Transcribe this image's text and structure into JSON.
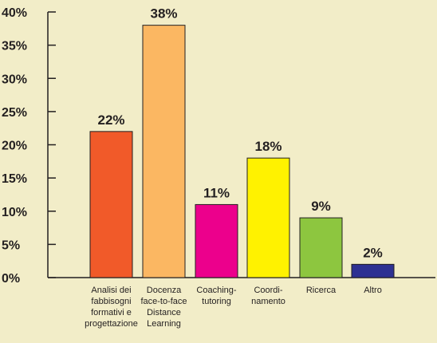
{
  "chart_data": {
    "type": "bar",
    "title": "",
    "xlabel": "",
    "ylabel": "",
    "ylim": [
      0,
      40
    ],
    "yticks": [
      "0%",
      "5%",
      "10%",
      "15%",
      "20%",
      "25%",
      "30%",
      "35%",
      "40%"
    ],
    "ytick_values": [
      0,
      5,
      10,
      15,
      20,
      25,
      30,
      35,
      40
    ],
    "grid": false,
    "legend": "none",
    "categories": [
      [
        "Analisi dei",
        "fabbisogni",
        "formativi e",
        "progettazione"
      ],
      [
        "Docenza",
        "face-to-face",
        "Distance",
        "Learning"
      ],
      [
        "Coaching-",
        "tutoring"
      ],
      [
        "Coordi-",
        "namento"
      ],
      [
        "Ricerca"
      ],
      [
        "Altro"
      ]
    ],
    "values": [
      22,
      38,
      11,
      18,
      9,
      2
    ],
    "data_labels": [
      "22%",
      "38%",
      "11%",
      "18%",
      "9%",
      "2%"
    ],
    "colors": [
      "#f15a29",
      "#fbb762",
      "#ec008c",
      "#fff200",
      "#8dc63f",
      "#2e3192"
    ]
  }
}
